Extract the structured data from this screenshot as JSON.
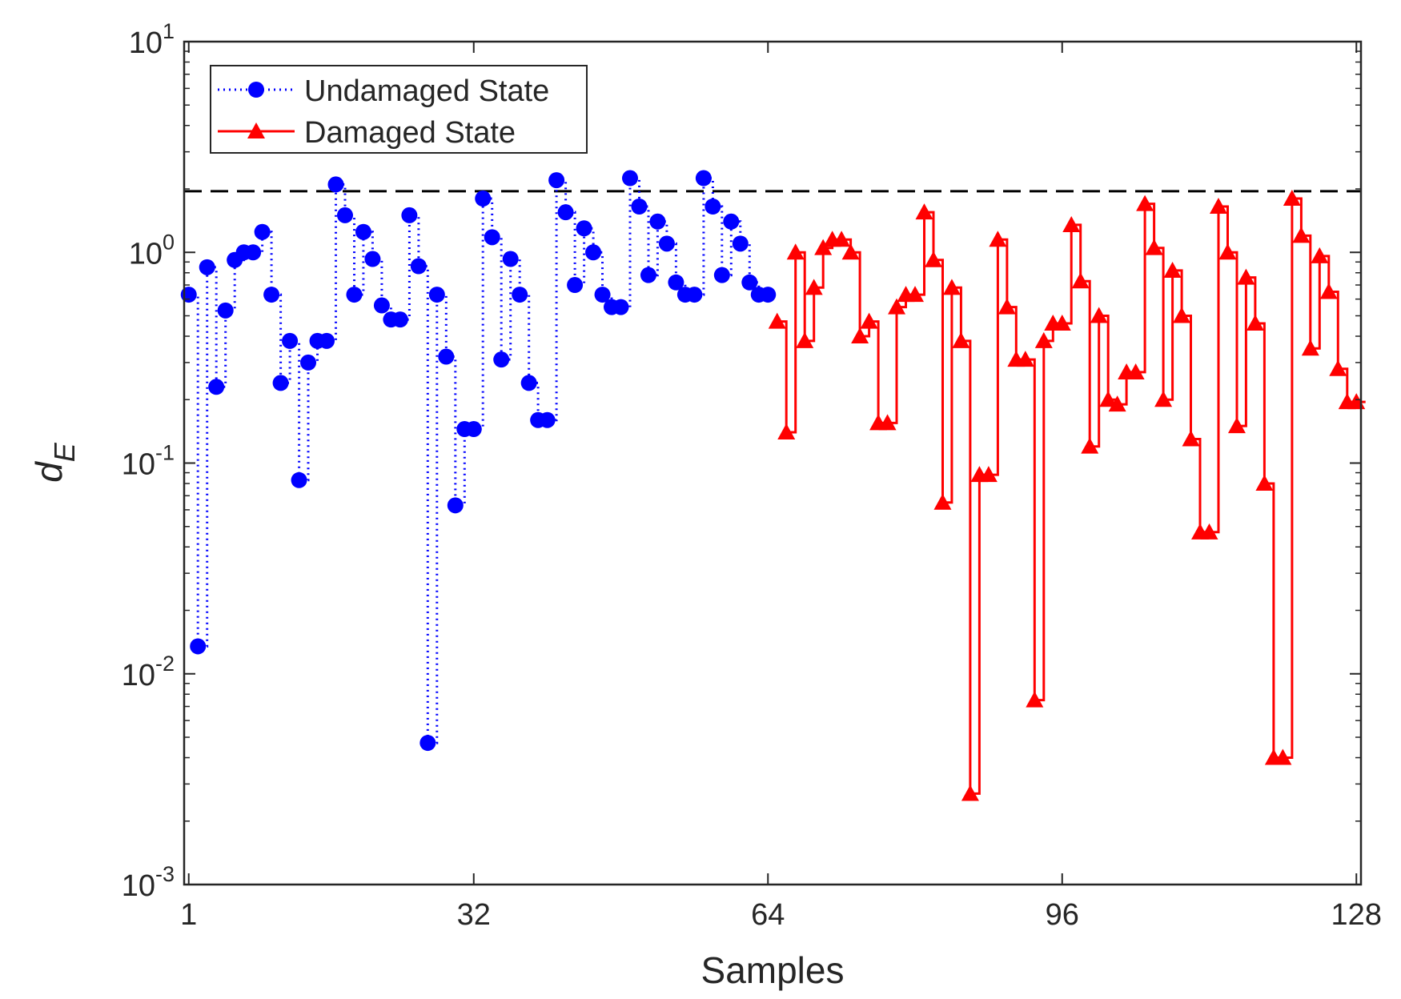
{
  "chart_data": {
    "type": "line",
    "title": "",
    "xlabel": "Samples",
    "ylabel": {
      "base": "d",
      "subscript": "E"
    },
    "yscale": "log",
    "xlim": [
      0.5,
      128.5
    ],
    "ylim": [
      0.001,
      10
    ],
    "xticks": [
      1,
      32,
      64,
      96,
      128
    ],
    "xtick_labels": [
      "1",
      "32",
      "64",
      "96",
      "128"
    ],
    "yticks": [
      {
        "value": 10,
        "base": "10",
        "exp": "1"
      },
      {
        "value": 1,
        "base": "10",
        "exp": "0"
      },
      {
        "value": 0.1,
        "base": "10",
        "exp": "-1"
      },
      {
        "value": 0.01,
        "base": "10",
        "exp": "-2"
      },
      {
        "value": 0.001,
        "base": "10",
        "exp": "-3"
      }
    ],
    "threshold": 1.95,
    "legend_position": "top-left",
    "series": [
      {
        "name": "Undamaged State",
        "color": "#0000FF",
        "line_style": "dotted",
        "marker": "circle",
        "x_start": 1,
        "values": [
          0.63,
          0.0135,
          0.85,
          0.23,
          0.53,
          0.92,
          1.0,
          1.0,
          1.25,
          0.63,
          0.24,
          0.38,
          0.083,
          0.3,
          0.38,
          0.38,
          2.1,
          1.5,
          0.63,
          1.25,
          0.93,
          0.56,
          0.48,
          0.48,
          1.5,
          0.86,
          0.0047,
          0.63,
          0.32,
          0.063,
          0.145,
          0.145,
          1.8,
          1.18,
          0.31,
          0.93,
          0.63,
          0.24,
          0.16,
          0.16,
          2.2,
          1.55,
          0.7,
          1.3,
          1.0,
          0.63,
          0.55,
          0.55,
          2.25,
          1.65,
          0.78,
          1.4,
          1.1,
          0.72,
          0.63,
          0.63,
          2.25,
          1.65,
          0.78,
          1.4,
          1.1,
          0.72,
          0.63,
          0.63
        ]
      },
      {
        "name": "Damaged State",
        "color": "#FF0000",
        "line_style": "solid",
        "marker": "triangle",
        "x_start": 65,
        "values": [
          0.47,
          0.14,
          1.0,
          0.38,
          0.68,
          1.05,
          1.15,
          1.15,
          1.0,
          0.4,
          0.47,
          0.155,
          0.155,
          0.55,
          0.63,
          0.63,
          1.55,
          0.92,
          0.065,
          0.68,
          0.38,
          0.0027,
          0.088,
          0.088,
          1.15,
          0.55,
          0.31,
          0.31,
          0.0075,
          0.38,
          0.46,
          0.46,
          1.35,
          0.73,
          0.12,
          0.5,
          0.2,
          0.19,
          0.27,
          0.27,
          1.7,
          1.05,
          0.2,
          0.82,
          0.5,
          0.13,
          0.047,
          0.047,
          1.65,
          1.0,
          0.15,
          0.76,
          0.46,
          0.08,
          0.004,
          0.004,
          1.8,
          1.2,
          0.35,
          0.96,
          0.65,
          0.28,
          0.195,
          0.195
        ]
      }
    ]
  }
}
